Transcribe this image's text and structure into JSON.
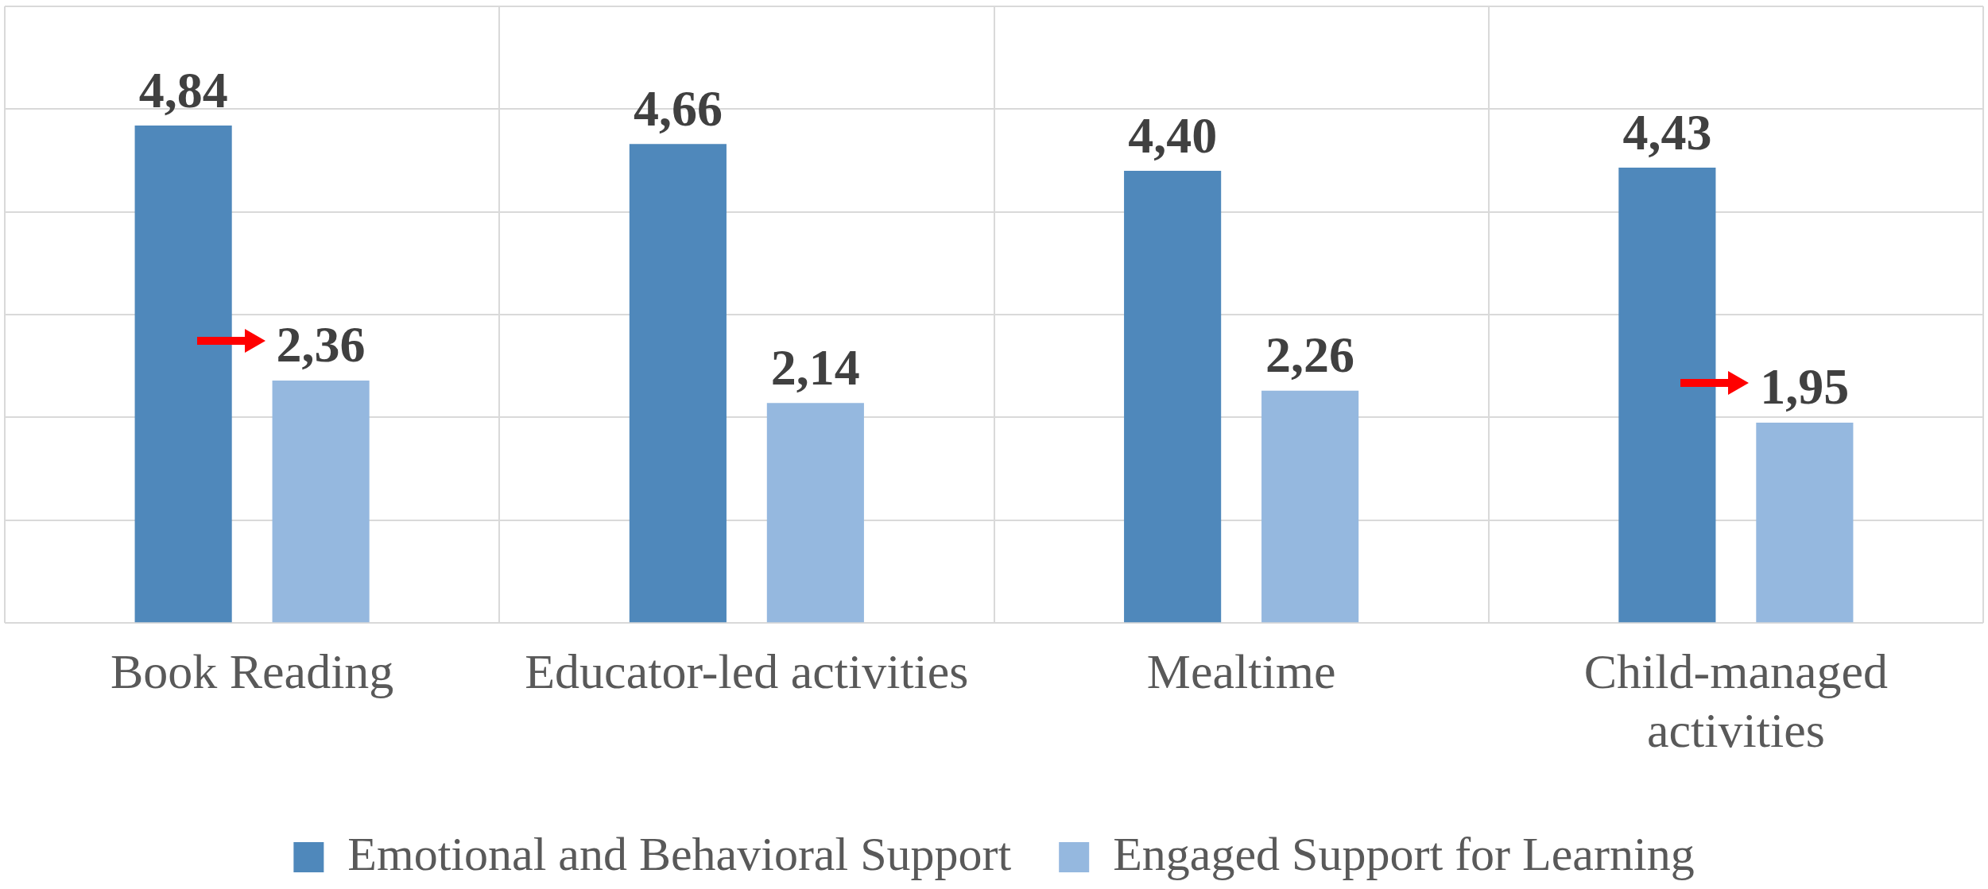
{
  "chart_data": {
    "type": "bar",
    "categories": [
      "Book Reading",
      "Educator-led activities",
      "Mealtime",
      "Child-managed activities"
    ],
    "series": [
      {
        "name": "Emotional and Behavioral Support",
        "color": "#4f88bb",
        "values": [
          4.84,
          4.66,
          4.4,
          4.43
        ],
        "value_labels": [
          "4,84",
          "4,66",
          "4,40",
          "4,43"
        ]
      },
      {
        "name": "Engaged Support for Learning",
        "color": "#95b8df",
        "values": [
          2.36,
          2.14,
          2.26,
          1.95
        ],
        "value_labels": [
          "2,36",
          "2,14",
          "2,26",
          "1,95"
        ]
      }
    ],
    "ylim": [
      0,
      6
    ],
    "yticks": [
      {
        "value": 0,
        "label": null
      },
      {
        "value": 1,
        "label": null
      },
      {
        "value": 2,
        "label": null
      },
      {
        "value": 3,
        "label": null
      },
      {
        "value": 4,
        "label": null
      },
      {
        "value": 5,
        "label": null
      },
      {
        "value": 6,
        "label": null
      }
    ],
    "tick_labels": "x",
    "grid": true,
    "legend": "bottom"
  }
}
